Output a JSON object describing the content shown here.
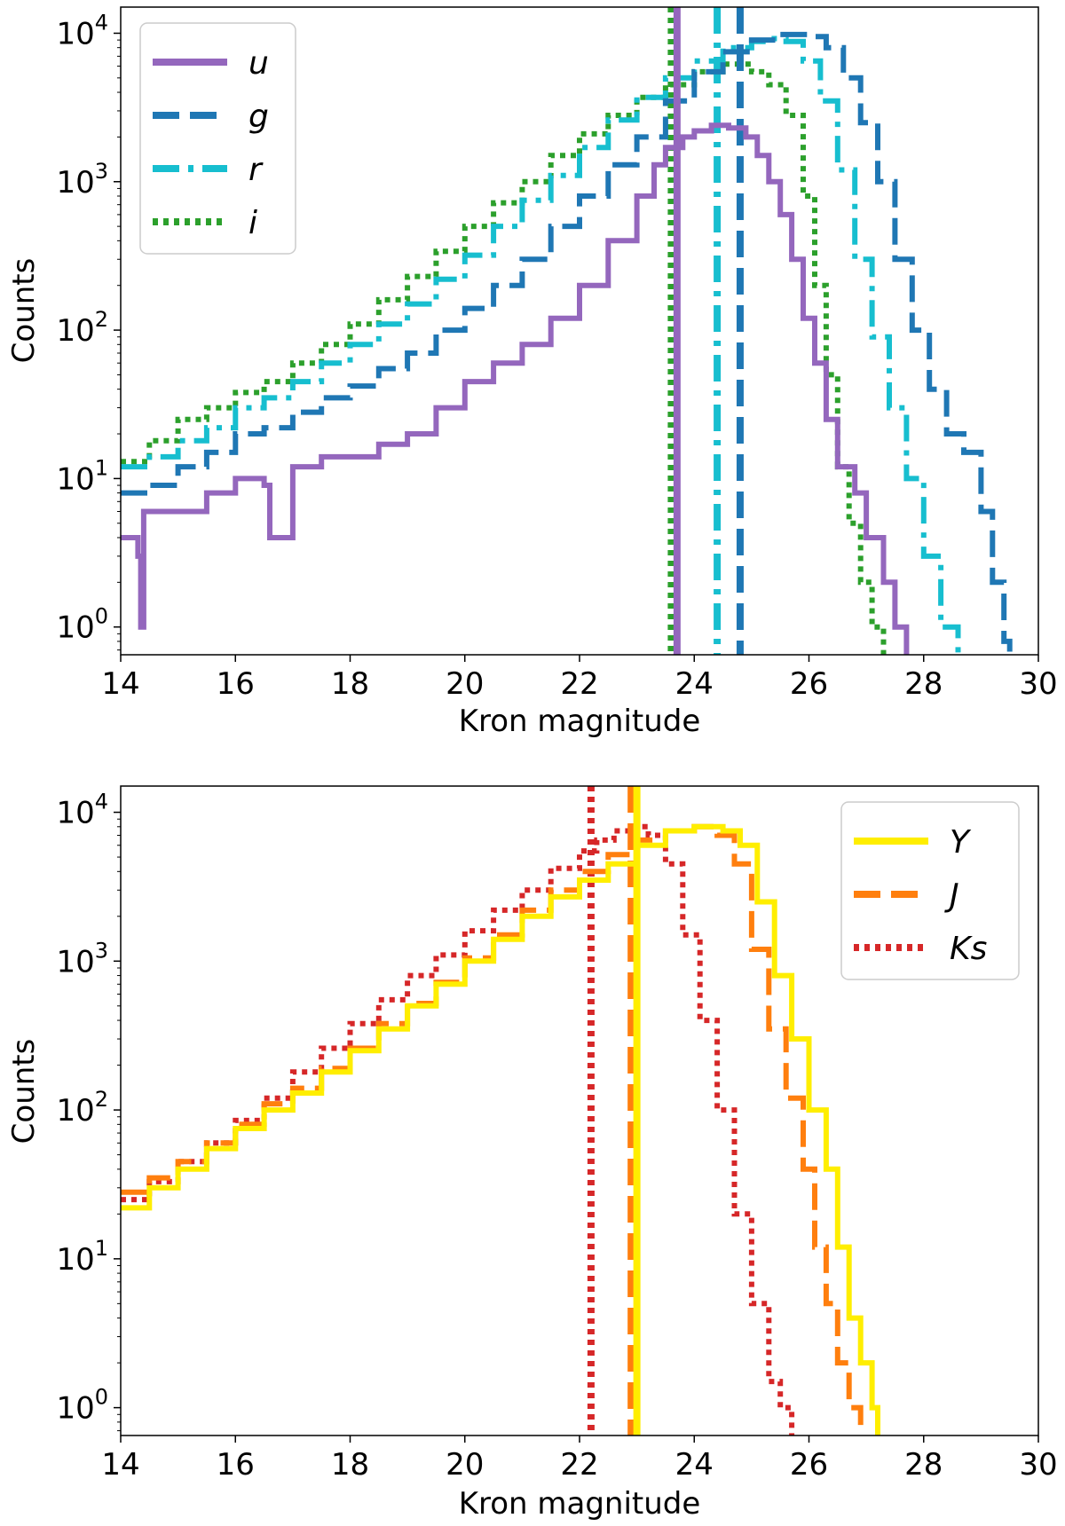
{
  "chart_data": [
    {
      "type": "line",
      "subtype": "step-histogram",
      "xlabel": "Kron magnitude",
      "ylabel": "Counts",
      "xlim": [
        14,
        30
      ],
      "ylim": [
        0.65,
        15000
      ],
      "yscale": "log",
      "xticks": [
        "14",
        "16",
        "18",
        "20",
        "22",
        "24",
        "26",
        "28",
        "30"
      ],
      "yticks": [
        {
          "value": 1,
          "base": "10",
          "exp": "0"
        },
        {
          "value": 10,
          "base": "10",
          "exp": "1"
        },
        {
          "value": 100,
          "base": "10",
          "exp": "2"
        },
        {
          "value": 1000,
          "base": "10",
          "exp": "3"
        },
        {
          "value": 10000,
          "base": "10",
          "exp": "4"
        }
      ],
      "legend_position": "upper-left",
      "grid": false,
      "series": [
        {
          "name": "u",
          "color": "#9467bd",
          "dash": "solid",
          "completeness_limit": 23.7,
          "x": [
            14,
            14.3,
            14.35,
            14.4,
            15,
            15.5,
            16,
            16.5,
            16.6,
            17,
            17.5,
            18,
            18.5,
            19,
            19.5,
            20,
            20.5,
            21,
            21.5,
            22,
            22.5,
            23,
            23.3,
            23.5,
            23.8,
            24,
            24.3,
            24.6,
            24.9,
            25.1,
            25.3,
            25.5,
            25.7,
            25.9,
            26.1,
            26.3,
            26.5,
            26.8,
            27,
            27.3,
            27.5,
            27.7
          ],
          "y": [
            4,
            3,
            1,
            6,
            6,
            8,
            10,
            9,
            4,
            12,
            14,
            14,
            17,
            20,
            30,
            45,
            60,
            80,
            120,
            200,
            400,
            800,
            1300,
            1700,
            2000,
            2200,
            2400,
            2300,
            2000,
            1500,
            1000,
            600,
            300,
            120,
            60,
            25,
            12,
            8,
            4,
            2,
            1,
            0.65
          ]
        },
        {
          "name": "g",
          "color": "#1f77b4",
          "dash": "dashed",
          "completeness_limit": 24.8,
          "x": [
            14,
            14.5,
            15,
            15.5,
            16,
            16.5,
            17,
            17.5,
            18,
            18.5,
            19,
            19.5,
            20,
            20.5,
            21,
            21.5,
            22,
            22.5,
            23,
            23.5,
            24,
            24.5,
            25,
            25.5,
            26,
            26.3,
            26.6,
            26.9,
            27.2,
            27.5,
            27.8,
            28.1,
            28.4,
            28.7,
            29,
            29.2,
            29.4,
            29.5
          ],
          "y": [
            8,
            9,
            12,
            15,
            20,
            22,
            28,
            35,
            42,
            55,
            70,
            100,
            140,
            200,
            300,
            500,
            800,
            1300,
            2000,
            3500,
            5500,
            7500,
            9000,
            9800,
            9500,
            8000,
            5000,
            2500,
            1000,
            300,
            100,
            40,
            20,
            15,
            6,
            2,
            0.8,
            0.65
          ]
        },
        {
          "name": "r",
          "color": "#17becf",
          "dash": "dashdot",
          "completeness_limit": 24.4,
          "x": [
            14,
            14.5,
            15,
            15.5,
            16,
            16.5,
            17,
            17.5,
            18,
            18.5,
            19,
            19.5,
            20,
            20.5,
            21,
            21.5,
            22,
            22.5,
            23,
            23.5,
            24,
            24.5,
            25,
            25.3,
            25.6,
            25.9,
            26.2,
            26.5,
            26.8,
            27.1,
            27.4,
            27.7,
            28,
            28.3,
            28.6
          ],
          "y": [
            12,
            14,
            18,
            22,
            30,
            35,
            45,
            60,
            80,
            110,
            150,
            220,
            320,
            500,
            750,
            1100,
            1700,
            2600,
            3700,
            5000,
            6500,
            8000,
            8800,
            9200,
            8800,
            6500,
            3500,
            1200,
            300,
            90,
            30,
            10,
            3,
            1,
            0.65
          ]
        },
        {
          "name": "i",
          "color": "#2ca02c",
          "dash": "dotted",
          "completeness_limit": 23.6,
          "x": [
            14,
            14.5,
            15,
            15.5,
            16,
            16.5,
            17,
            17.5,
            18,
            18.5,
            19,
            19.5,
            20,
            20.5,
            21,
            21.5,
            22,
            22.5,
            23,
            23.5,
            24,
            24.5,
            25,
            25.3,
            25.6,
            25.9,
            26.1,
            26.3,
            26.5,
            26.7,
            26.9,
            27.1,
            27.3
          ],
          "y": [
            13,
            18,
            25,
            30,
            38,
            45,
            60,
            80,
            110,
            160,
            230,
            340,
            500,
            720,
            1000,
            1500,
            2100,
            2800,
            3700,
            4500,
            5500,
            6200,
            5500,
            4500,
            2800,
            800,
            200,
            50,
            12,
            5,
            2,
            1,
            0.65
          ]
        }
      ]
    },
    {
      "type": "line",
      "subtype": "step-histogram",
      "xlabel": "Kron magnitude",
      "ylabel": "Counts",
      "xlim": [
        14,
        30
      ],
      "ylim": [
        0.65,
        15000
      ],
      "yscale": "log",
      "xticks": [
        "14",
        "16",
        "18",
        "20",
        "22",
        "24",
        "26",
        "28",
        "30"
      ],
      "yticks": [
        {
          "value": 1,
          "base": "10",
          "exp": "0"
        },
        {
          "value": 10,
          "base": "10",
          "exp": "1"
        },
        {
          "value": 100,
          "base": "10",
          "exp": "2"
        },
        {
          "value": 1000,
          "base": "10",
          "exp": "3"
        },
        {
          "value": 10000,
          "base": "10",
          "exp": "4"
        }
      ],
      "legend_position": "upper-right",
      "grid": false,
      "series": [
        {
          "name": "Y",
          "color": "#ffee00",
          "dash": "solid",
          "completeness_limit": 23.0,
          "x": [
            14,
            14.5,
            15,
            15.5,
            16,
            16.5,
            17,
            17.5,
            18,
            18.5,
            19,
            19.5,
            20,
            20.5,
            21,
            21.5,
            22,
            22.5,
            23,
            23.5,
            24,
            24.5,
            24.8,
            25.1,
            25.4,
            25.7,
            26,
            26.3,
            26.5,
            26.7,
            26.9,
            27.1,
            27.2
          ],
          "y": [
            22,
            30,
            40,
            55,
            75,
            100,
            130,
            180,
            250,
            350,
            500,
            700,
            1000,
            1400,
            2000,
            2700,
            3500,
            4500,
            6000,
            7500,
            8000,
            7500,
            6000,
            2500,
            800,
            300,
            100,
            40,
            12,
            4,
            2,
            1,
            0.65
          ]
        },
        {
          "name": "J",
          "color": "#ff7f0e",
          "dash": "dashed",
          "completeness_limit": 22.9,
          "x": [
            14,
            14.5,
            15,
            15.5,
            16,
            16.5,
            17,
            17.5,
            18,
            18.5,
            19,
            19.5,
            20,
            20.5,
            21,
            21.5,
            22,
            22.5,
            23,
            23.5,
            24,
            24.4,
            24.7,
            25,
            25.3,
            25.6,
            25.9,
            26.1,
            26.3,
            26.5,
            26.7,
            26.9
          ],
          "y": [
            28,
            35,
            45,
            60,
            80,
            110,
            140,
            190,
            260,
            380,
            520,
            720,
            1050,
            1500,
            2200,
            3000,
            4000,
            5200,
            6500,
            7500,
            8000,
            7000,
            4500,
            1200,
            350,
            120,
            40,
            12,
            5,
            2,
            1,
            0.65
          ]
        },
        {
          "name": "Ks",
          "color": "#d62728",
          "dash": "dotted",
          "completeness_limit": 22.2,
          "x": [
            14,
            14.5,
            15,
            15.5,
            16,
            16.5,
            17,
            17.5,
            18,
            18.5,
            19,
            19.5,
            20,
            20.5,
            21,
            21.5,
            22,
            22.3,
            22.6,
            22.9,
            23.2,
            23.5,
            23.8,
            24.1,
            24.4,
            24.7,
            25,
            25.3,
            25.5,
            25.7
          ],
          "y": [
            25,
            33,
            45,
            60,
            85,
            120,
            180,
            260,
            380,
            550,
            800,
            1100,
            1600,
            2200,
            3000,
            4200,
            5500,
            6500,
            7500,
            8000,
            7000,
            4500,
            1500,
            400,
            100,
            20,
            5,
            1.5,
            1,
            0.65
          ]
        }
      ]
    }
  ]
}
